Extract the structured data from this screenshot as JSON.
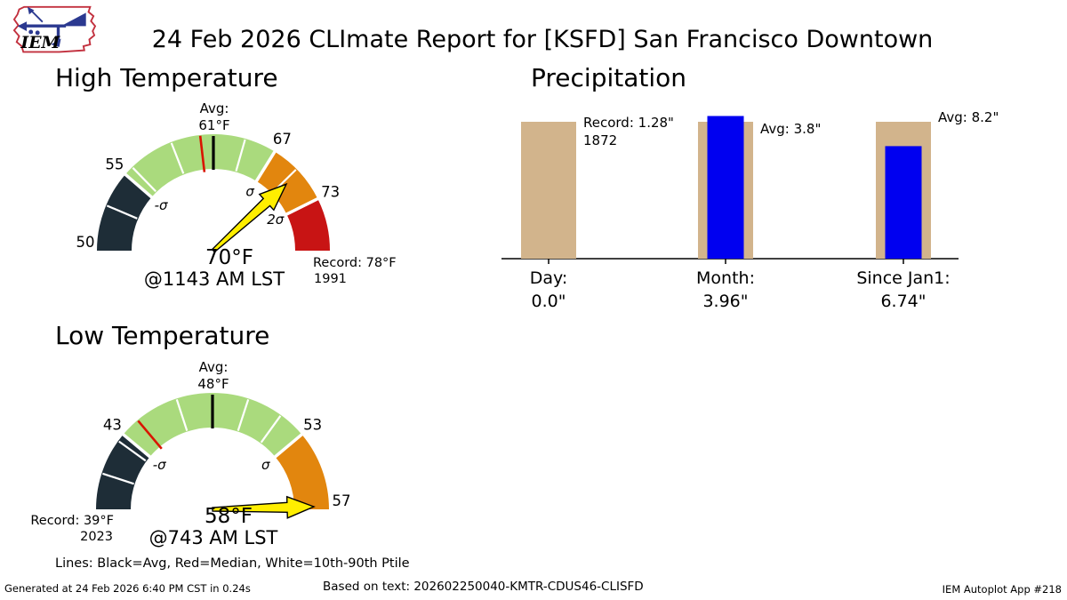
{
  "title": "24 Feb 2026 CLImate Report for [KSFD] San Francisco Downtown",
  "logo": {
    "text": "IEM"
  },
  "legend": "Lines: Black=Avg, Red=Median, White=10th-90th Ptile",
  "footer": {
    "generated": "Generated at 24 Feb 2026 6:40 PM CST in 0.24s",
    "based_on": "Based on text: 202602250040-KMTR-CDUS46-CLISFD",
    "app": "IEM Autoplot App #218"
  },
  "colors": {
    "dark": "#1e2d37",
    "green": "#aada7d",
    "orange": "#e2860e",
    "red": "#c81414",
    "tan": "#d2b48c",
    "blue": "#0000f0",
    "needle": "#ffee00",
    "median": "#d91400",
    "avg": "#000000"
  },
  "chart_data": [
    {
      "type": "gauge",
      "id": "high",
      "title": "High Temperature",
      "min": 50,
      "avg": 61,
      "median": 60.2,
      "max": 78,
      "value": 70,
      "value_label": "70°F",
      "time_label": "@1143 AM LST",
      "segments": [
        {
          "from": 50,
          "to": 55,
          "color": "#1e2d37"
        },
        {
          "from": 55,
          "to": 67,
          "color": "#aada7d"
        },
        {
          "from": 67,
          "to": 73,
          "color": "#e2860e"
        },
        {
          "from": 73,
          "to": 78,
          "color": "#c81414"
        }
      ],
      "tick_values": [
        52.8,
        55.6,
        58.4,
        64,
        69.6
      ],
      "outer_labels": [
        {
          "value": 50,
          "text": "50"
        },
        {
          "value": 55,
          "text": "55"
        },
        {
          "value": 67,
          "text": "67"
        },
        {
          "value": 73,
          "text": "73"
        }
      ],
      "sigma_labels": [
        {
          "value": 55,
          "text": "-σ"
        },
        {
          "value": 67,
          "text": "σ"
        },
        {
          "value": 73,
          "text": "2σ"
        }
      ],
      "avg_label": [
        "Avg:",
        "61°F"
      ],
      "record": {
        "text": "Record: 78°F",
        "year": "1991",
        "side": "right"
      }
    },
    {
      "type": "gauge",
      "id": "low",
      "title": "Low Temperature",
      "min": 39,
      "avg": 48,
      "median": 44,
      "max": 57,
      "value": 58,
      "value_label": "58°F",
      "time_label": "@743 AM LST",
      "segments": [
        {
          "from": 39,
          "to": 43,
          "color": "#1e2d37"
        },
        {
          "from": 43,
          "to": 53,
          "color": "#aada7d"
        },
        {
          "from": 53,
          "to": 57,
          "color": "#e2860e"
        }
      ],
      "tick_values": [
        40.8,
        42.6,
        46.2,
        49.8,
        51.6
      ],
      "outer_labels": [
        {
          "value": 43,
          "text": "43"
        },
        {
          "value": 53,
          "text": "53"
        },
        {
          "value": 57,
          "text": "57"
        }
      ],
      "sigma_labels": [
        {
          "value": 43,
          "text": "-σ"
        },
        {
          "value": 53,
          "text": "σ"
        }
      ],
      "avg_label": [
        "Avg:",
        "48°F"
      ],
      "record": {
        "text": "Record: 39°F",
        "year": "2023",
        "side": "left"
      }
    },
    {
      "type": "bar",
      "id": "precip",
      "title": "Precipitation",
      "bar_colors": {
        "actual": "#0000f0",
        "reference": "#d2b48c"
      },
      "groups": [
        {
          "label": "Day:",
          "value_label": "0.0\"",
          "value": 0.0,
          "reference": 1.28,
          "annotation": [
            "Record: 1.28\"",
            "1872"
          ]
        },
        {
          "label": "Month:",
          "value_label": "3.96\"",
          "value": 3.96,
          "reference": 3.8,
          "annotation": [
            "Avg: 3.8\""
          ]
        },
        {
          "label": "Since Jan1:",
          "value_label": "6.74\"",
          "value": 6.74,
          "reference": 8.2,
          "annotation": [
            "Avg: 8.2\""
          ]
        }
      ]
    }
  ]
}
